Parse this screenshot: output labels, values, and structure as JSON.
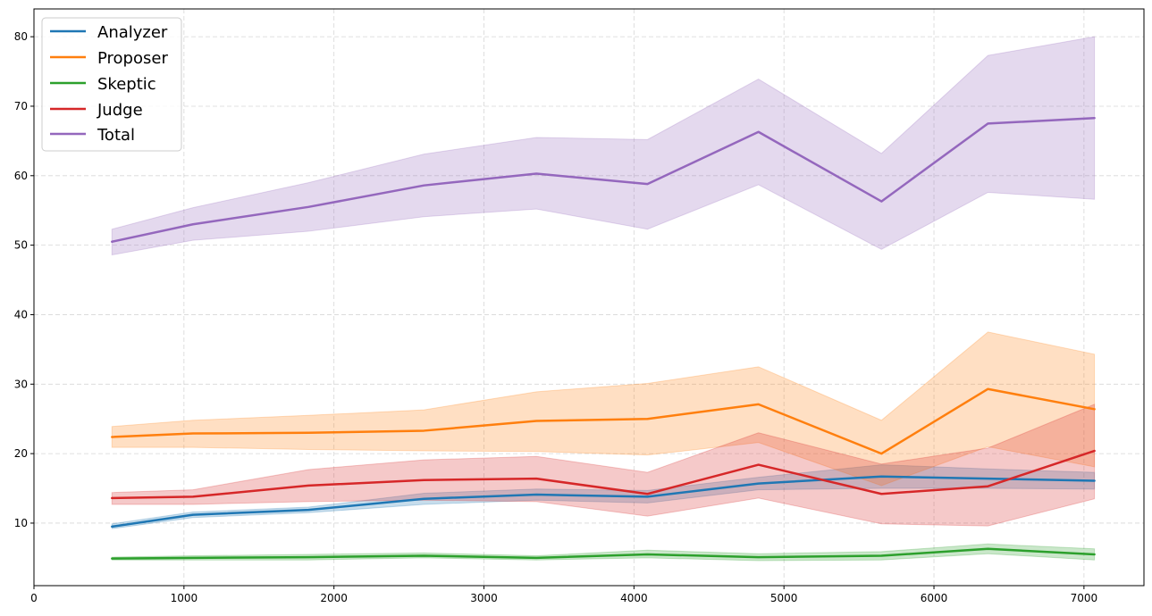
{
  "chart_data": {
    "type": "line",
    "title": "",
    "xlabel": "",
    "ylabel": "",
    "xlim": [
      0,
      7400
    ],
    "ylim": [
      1,
      84
    ],
    "xticks": [
      0,
      1000,
      2000,
      3000,
      4000,
      5000,
      6000,
      7000
    ],
    "yticks": [
      10,
      20,
      30,
      40,
      50,
      60,
      70,
      80
    ],
    "grid": true,
    "legend_position": "top-left",
    "x": [
      520,
      1060,
      1830,
      2600,
      3350,
      4090,
      4830,
      5650,
      6360,
      7070
    ],
    "series": [
      {
        "name": "Analyzer",
        "color": "#1f77b4",
        "values": [
          9.5,
          11.2,
          11.9,
          13.5,
          14.1,
          13.8,
          15.7,
          16.7,
          16.4,
          16.1
        ],
        "lower": [
          9.2,
          10.8,
          11.5,
          12.7,
          13.3,
          12.9,
          14.8,
          15.0,
          15.0,
          14.9
        ],
        "upper": [
          9.9,
          11.6,
          12.3,
          14.3,
          14.9,
          14.7,
          16.6,
          18.4,
          17.8,
          17.3
        ]
      },
      {
        "name": "Proposer",
        "color": "#ff7f0e",
        "values": [
          22.4,
          22.9,
          23.0,
          23.3,
          24.7,
          25.0,
          27.1,
          20.0,
          29.3,
          26.4
        ],
        "lower": [
          20.9,
          20.9,
          20.6,
          20.4,
          20.3,
          19.8,
          21.6,
          15.4,
          21.0,
          18.1
        ],
        "upper": [
          23.9,
          24.8,
          25.5,
          26.3,
          28.9,
          30.1,
          32.5,
          24.8,
          37.5,
          34.3
        ]
      },
      {
        "name": "Skeptic",
        "color": "#2ca02c",
        "values": [
          4.9,
          5.0,
          5.1,
          5.3,
          5.0,
          5.5,
          5.1,
          5.3,
          6.3,
          5.5
        ],
        "lower": [
          4.7,
          4.7,
          4.7,
          5.0,
          4.7,
          5.0,
          4.6,
          4.7,
          5.6,
          4.7
        ],
        "upper": [
          5.1,
          5.3,
          5.5,
          5.7,
          5.3,
          6.1,
          5.6,
          5.9,
          7.0,
          6.3
        ]
      },
      {
        "name": "Judge",
        "color": "#d62728",
        "values": [
          13.6,
          13.8,
          15.4,
          16.2,
          16.4,
          14.2,
          18.4,
          14.2,
          15.3,
          20.4
        ],
        "lower": [
          12.7,
          12.7,
          13.1,
          13.3,
          13.1,
          11.0,
          13.6,
          9.9,
          9.6,
          13.5
        ],
        "upper": [
          14.4,
          14.8,
          17.7,
          19.1,
          19.6,
          17.3,
          23.0,
          18.5,
          20.8,
          27.1
        ]
      },
      {
        "name": "Total",
        "color": "#9467bd",
        "values": [
          50.5,
          53.0,
          55.5,
          58.6,
          60.3,
          58.8,
          66.3,
          56.3,
          67.5,
          68.3
        ],
        "lower": [
          48.6,
          50.7,
          52.0,
          54.1,
          55.2,
          52.3,
          58.7,
          49.4,
          57.6,
          56.6
        ],
        "upper": [
          52.3,
          55.4,
          59.0,
          63.1,
          65.5,
          65.2,
          73.9,
          63.2,
          77.3,
          80.0
        ]
      }
    ]
  }
}
